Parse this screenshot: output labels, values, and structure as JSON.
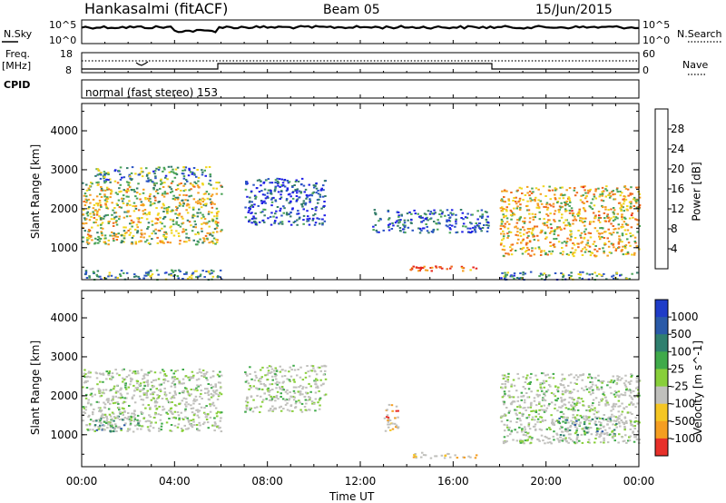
{
  "header": {
    "station": "Hankasalmi (fitACF)",
    "beam": "Beam 05",
    "date": "15/Jun/2015"
  },
  "top_panels": {
    "nsky_label": "N.Sky",
    "nsearch_label": "N.Search",
    "count_ticks": [
      "10^5",
      "10^0"
    ],
    "freq_label": "Freq.",
    "freq_unit": "[MHz]",
    "freq_ticks": [
      "18",
      "8"
    ],
    "nave_ticks": [
      "60",
      "0"
    ],
    "nave_label": "Nave",
    "cpid_label": "CPID",
    "cpid_text": "normal (fast stereo) 153"
  },
  "time_axis": {
    "label": "Time UT",
    "ticks": [
      "00:00",
      "04:00",
      "08:00",
      "12:00",
      "16:00",
      "20:00",
      "00:00"
    ]
  },
  "chart_data": [
    {
      "type": "heatmap",
      "quantity": "Power",
      "ylabel": "Slant Range [km]",
      "xlabel": "Time UT",
      "yticks": [
        1000,
        2000,
        3000,
        4000
      ],
      "ylim": [
        180,
        4700
      ],
      "xlim_hours": [
        0,
        24
      ],
      "colorbar": {
        "label": "Power [dB]",
        "ticks": [
          "4",
          "8",
          "12",
          "16",
          "20",
          "24",
          "28"
        ],
        "colors": [
          "#1f1fe6",
          "#2b55c4",
          "#347d6a",
          "#4aa457",
          "#f0d61e",
          "#f59e21",
          "#ef6a1e",
          "#e6281e"
        ]
      },
      "echo_regions": [
        {
          "t0": 0.0,
          "t1": 6.0,
          "r0": 1100,
          "r1": 2700,
          "level": 0.55
        },
        {
          "t0": 0.5,
          "t1": 5.5,
          "r0": 2700,
          "r1": 3100,
          "level": 0.3
        },
        {
          "t0": 7.0,
          "t1": 10.5,
          "r0": 1600,
          "r1": 2800,
          "level": 0.15
        },
        {
          "t0": 12.5,
          "t1": 17.5,
          "r0": 1400,
          "r1": 2000,
          "level": 0.2
        },
        {
          "t0": 14.0,
          "t1": 17.0,
          "r0": 420,
          "r1": 560,
          "level": 0.9
        },
        {
          "t0": 18.0,
          "t1": 24.0,
          "r0": 800,
          "r1": 2600,
          "level": 0.65
        },
        {
          "t0": 0.0,
          "t1": 6.0,
          "r0": 200,
          "r1": 450,
          "level": 0.35
        },
        {
          "t0": 18.0,
          "t1": 24.0,
          "r0": 200,
          "r1": 400,
          "level": 0.3
        }
      ]
    },
    {
      "type": "heatmap",
      "quantity": "Velocity",
      "ylabel": "Slant Range [km]",
      "xlabel": "Time UT",
      "yticks": [
        1000,
        2000,
        3000,
        4000
      ],
      "ylim": [
        180,
        4700
      ],
      "xlim_hours": [
        0,
        24
      ],
      "colorbar": {
        "label": "Velocity [m s^-1]",
        "ticks": [
          "1000",
          "500",
          "100",
          "25",
          "-25",
          "-100",
          "-500",
          "-1000"
        ],
        "colors": [
          "#1f3cc8",
          "#2a5aa8",
          "#2f7f6e",
          "#3faa4a",
          "#88cf3a",
          "#c0c0bc",
          "#f5c623",
          "#f59e21",
          "#e8302a"
        ]
      },
      "echo_regions": [
        {
          "t0": 0.0,
          "t1": 6.0,
          "r0": 1100,
          "r1": 2700,
          "level": 0.5
        },
        {
          "t0": 0.5,
          "t1": 2.5,
          "r0": 1100,
          "r1": 1500,
          "level": 0.3
        },
        {
          "t0": 7.0,
          "t1": 10.5,
          "r0": 1600,
          "r1": 2800,
          "level": 0.5
        },
        {
          "t0": 13.0,
          "t1": 13.6,
          "r0": 1100,
          "r1": 1800,
          "level": 0.9
        },
        {
          "t0": 14.0,
          "t1": 17.0,
          "r0": 420,
          "r1": 560,
          "level": 0.75
        },
        {
          "t0": 18.0,
          "t1": 24.0,
          "r0": 800,
          "r1": 2600,
          "level": 0.5
        },
        {
          "t0": 20.5,
          "t1": 23.0,
          "r0": 1000,
          "r1": 1500,
          "level": 0.25
        }
      ]
    }
  ]
}
